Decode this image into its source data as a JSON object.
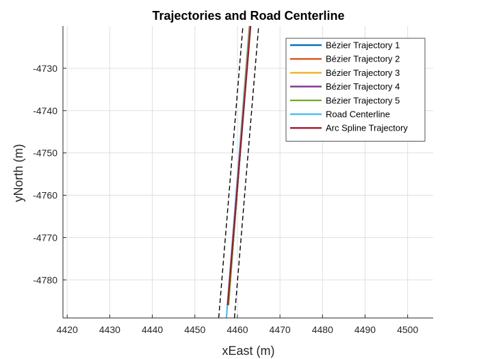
{
  "chart_data": {
    "type": "line",
    "title": "Trajectories and Road Centerline",
    "xlabel": "xEast (m)",
    "ylabel": "yNorth (m)",
    "xlim": [
      4419,
      4506
    ],
    "ylim": [
      -4789,
      -4720
    ],
    "xticks": [
      4420,
      4430,
      4440,
      4450,
      4460,
      4470,
      4480,
      4490,
      4500
    ],
    "yticks": [
      -4780,
      -4770,
      -4760,
      -4750,
      -4740,
      -4730
    ],
    "grid": true,
    "legend_position": "top-right",
    "series": [
      {
        "name": "Bézier Trajectory 1",
        "color": "#0072BD",
        "dash": "solid",
        "x": [
          4457.8,
          4463.0
        ],
        "y": [
          -4786,
          -4720
        ]
      },
      {
        "name": "Bézier Trajectory 2",
        "color": "#D95319",
        "dash": "solid",
        "x": [
          4457.9,
          4462.9
        ],
        "y": [
          -4786,
          -4720
        ]
      },
      {
        "name": "Bézier Trajectory 3",
        "color": "#EDB120",
        "dash": "solid",
        "x": [
          4457.9,
          4462.9
        ],
        "y": [
          -4786,
          -4720
        ]
      },
      {
        "name": "Bézier Trajectory 4",
        "color": "#7E2F8E",
        "dash": "solid",
        "x": [
          4457.8,
          4463.0
        ],
        "y": [
          -4786,
          -4720
        ]
      },
      {
        "name": "Bézier Trajectory 5",
        "color": "#77AC30",
        "dash": "solid",
        "x": [
          4457.9,
          4462.9
        ],
        "y": [
          -4786,
          -4720
        ]
      },
      {
        "name": "Road Centerline",
        "color": "#4DBEEE",
        "dash": "solid",
        "x": [
          4457.4,
          4462.8
        ],
        "y": [
          -4789,
          -4720
        ]
      },
      {
        "name": "Arc Spline Trajectory",
        "color": "#A2142F",
        "dash": "solid",
        "x": [
          4457.7,
          4463.1
        ],
        "y": [
          -4786,
          -4720
        ]
      },
      {
        "name": "",
        "color": "#000000",
        "dash": "dashed",
        "x": [
          4455.6,
          4461.3
        ],
        "y": [
          -4789,
          -4720
        ]
      },
      {
        "name": "",
        "color": "#000000",
        "dash": "dashed",
        "x": [
          4459.3,
          4465.0
        ],
        "y": [
          -4789,
          -4720
        ]
      }
    ]
  }
}
